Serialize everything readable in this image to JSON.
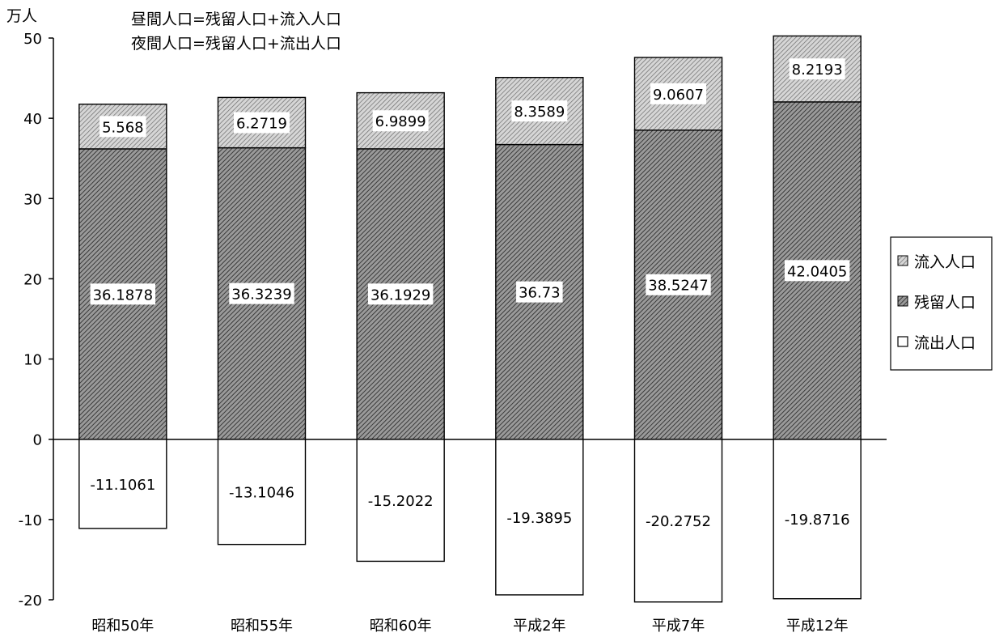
{
  "chart_data": {
    "type": "bar",
    "stacked": true,
    "unit_label": "万人",
    "notes": [
      "昼間人口=残留人口+流入人口",
      "夜間人口=残留人口+流出人口"
    ],
    "categories": [
      "昭和50年",
      "昭和55年",
      "昭和60年",
      "平成2年",
      "平成7年",
      "平成12年"
    ],
    "series": [
      {
        "name": "流出人口",
        "values": [
          -11.1061,
          -13.1046,
          -15.2022,
          -19.3895,
          -20.2752,
          -19.8716
        ],
        "fill": "#ffffff"
      },
      {
        "name": "残留人口",
        "values": [
          36.1878,
          36.3239,
          36.1929,
          36.73,
          38.5247,
          42.0405
        ],
        "fill": "#7a7a7a"
      },
      {
        "name": "流入人口",
        "values": [
          5.568,
          6.2719,
          6.9899,
          8.3589,
          9.0607,
          8.2193
        ],
        "fill": "#b8b8b8"
      }
    ],
    "value_labels": {
      "流出人口": [
        "-11.1061",
        "-13.1046",
        "-15.2022",
        "-19.3895",
        "-20.2752",
        "-19.8716"
      ],
      "残留人口": [
        "36.1878",
        "36.3239",
        "36.1929",
        "36.73",
        "38.5247",
        "42.0405"
      ],
      "流入人口": [
        "5.568",
        "6.2719",
        "6.9899",
        "8.3589",
        "9.0607",
        "8.2193"
      ]
    },
    "legend_order": [
      "流入人口",
      "残留人口",
      "流出人口"
    ],
    "legend_position": "right",
    "yticks": [
      -20,
      -10,
      0,
      10,
      20,
      30,
      40,
      50
    ],
    "ylim": [
      -20,
      50
    ],
    "grid": false
  }
}
